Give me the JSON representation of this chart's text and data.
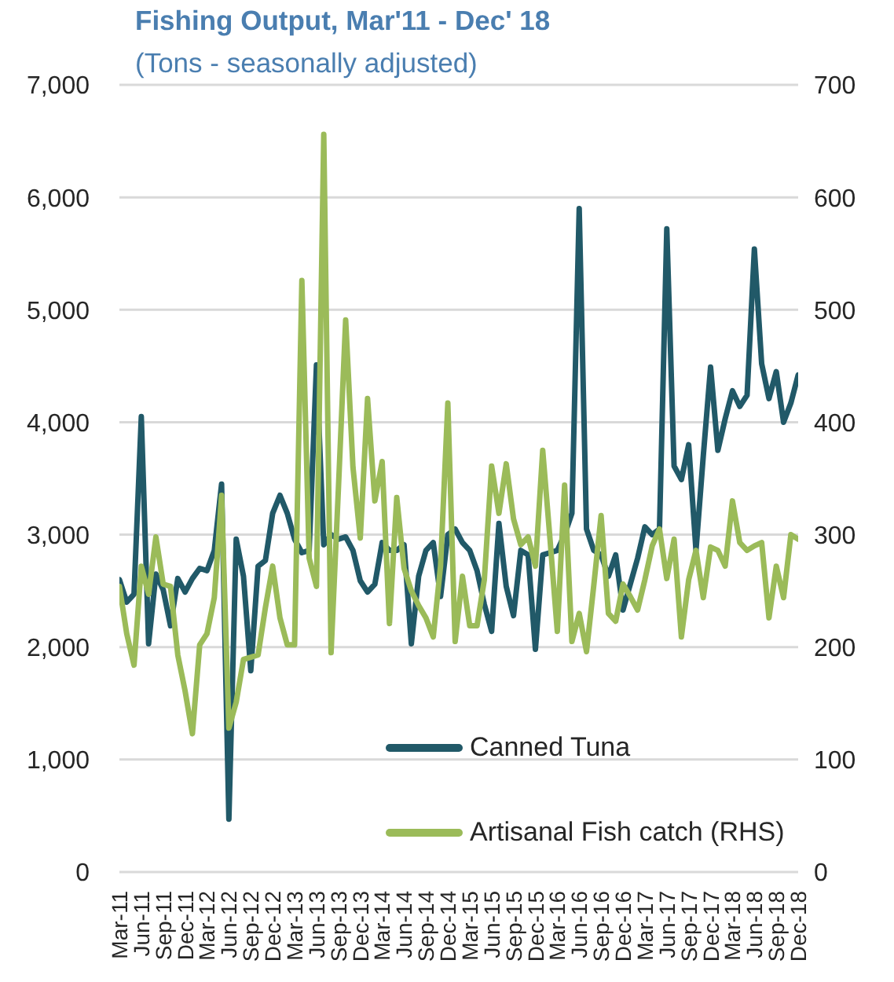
{
  "chart_data": {
    "type": "line",
    "title": "Fishing Output, Mar'11 - Dec' 18",
    "subtitle": "(Tons - seasonally adjusted)",
    "categories": [
      "Mar-11",
      null,
      null,
      "Jun-11",
      null,
      null,
      "Sep-11",
      null,
      null,
      "Dec-11",
      null,
      null,
      "Mar-12",
      null,
      null,
      "Jun-12",
      null,
      null,
      "Sep-12",
      null,
      null,
      "Dec-12",
      null,
      null,
      "Mar-13",
      null,
      null,
      "Jun-13",
      null,
      null,
      "Sep-13",
      null,
      null,
      "Dec-13",
      null,
      null,
      "Mar-14",
      null,
      null,
      "Jun-14",
      null,
      null,
      "Sep-14",
      null,
      null,
      "Dec-14",
      null,
      null,
      "Mar-15",
      null,
      null,
      "Jun-15",
      null,
      null,
      "Sep-15",
      null,
      null,
      "Dec-15",
      null,
      null,
      "Mar-16",
      null,
      null,
      "Jun-16",
      null,
      null,
      "Sep-16",
      null,
      null,
      "Dec-16",
      null,
      null,
      "Mar-17",
      null,
      null,
      "Jun-17",
      null,
      null,
      "Sep-17",
      null,
      null,
      "Dec-17",
      null,
      null,
      "Mar-18",
      null,
      null,
      "Jun-18",
      null,
      null,
      "Sep-18",
      null,
      null,
      "Dec-18"
    ],
    "series": [
      {
        "name": "Canned Tuna",
        "color": "#215968",
        "values": [
          2600,
          2400,
          2470,
          4050,
          2030,
          2650,
          2510,
          2190,
          2610,
          2490,
          2610,
          2700,
          2680,
          2860,
          3450,
          470,
          2960,
          2630,
          1790,
          2720,
          2770,
          3190,
          3350,
          3190,
          2960,
          2840,
          2860,
          4510,
          2910,
          3000,
          2960,
          2980,
          2860,
          2590,
          2490,
          2560,
          2930,
          2860,
          2860,
          2910,
          2030,
          2630,
          2860,
          2930,
          2450,
          3000,
          3050,
          2930,
          2860,
          2680,
          2380,
          2140,
          3100,
          2540,
          2280,
          2860,
          2820,
          1980,
          2820,
          2840,
          2860,
          3000,
          3190,
          5900,
          3050,
          2860,
          2820,
          2630,
          2820,
          2330,
          2560,
          2790,
          3070,
          3000,
          3050,
          5720,
          3610,
          3490,
          3800,
          2860,
          3700,
          4490,
          3750,
          4030,
          4280,
          4140,
          4240,
          5540,
          4520,
          4210,
          4450,
          4000,
          4170,
          4420
        ]
      },
      {
        "name": "Artisanal Fish catch (RHS)",
        "color": "#9bbb59",
        "axis": "y2",
        "values": [
          254,
          212,
          184,
          272,
          247,
          298,
          256,
          254,
          193,
          161,
          123,
          202,
          212,
          244,
          335,
          128,
          151,
          189,
          191,
          193,
          235,
          272,
          226,
          202,
          202,
          526,
          279,
          254,
          656,
          195,
          340,
          491,
          360,
          297,
          421,
          330,
          365,
          221,
          333,
          270,
          250,
          237,
          226,
          209,
          272,
          417,
          205,
          263,
          219,
          219,
          260,
          361,
          319,
          363,
          314,
          291,
          298,
          272,
          375,
          296,
          214,
          344,
          205,
          230,
          196,
          255,
          317,
          230,
          223,
          256,
          245,
          233,
          260,
          290,
          305,
          261,
          296,
          209,
          260,
          286,
          244,
          289,
          286,
          272,
          330,
          293,
          286,
          290,
          293,
          226,
          272,
          244,
          300,
          296
        ]
      }
    ],
    "ylim": [
      0,
      7000
    ],
    "yticks": [
      0,
      {
        "value": 1000,
        "label": "1,000"
      },
      {
        "value": 2000,
        "label": "2,000"
      },
      {
        "value": 3000,
        "label": "3,000"
      },
      {
        "value": 4000,
        "label": "4,000"
      },
      {
        "value": 5000,
        "label": "5,000"
      },
      {
        "value": 6000,
        "label": "6,000"
      },
      {
        "value": 7000,
        "label": "7,000"
      }
    ],
    "y2lim": [
      0,
      700
    ],
    "y2ticks": [
      0,
      100,
      200,
      300,
      400,
      500,
      600,
      700
    ],
    "grid": "y",
    "legend": "bottom"
  }
}
